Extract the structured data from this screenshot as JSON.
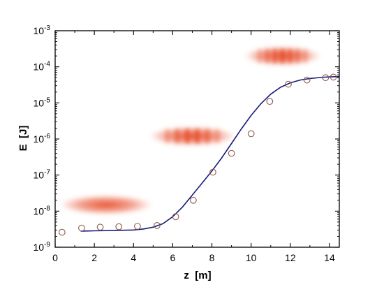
{
  "chart_data": {
    "type": "scatter",
    "title": "",
    "xlabel": "z  [m]",
    "ylabel": "E  [J]",
    "xlim": [
      0,
      14.5
    ],
    "ylim": [
      1e-09,
      0.001
    ],
    "yscale": "log",
    "grid": false,
    "x_ticks": [
      0,
      2,
      4,
      6,
      8,
      10,
      12,
      14
    ],
    "y_tick_exponents": [
      -9,
      -8,
      -7,
      -6,
      -5,
      -4,
      -3
    ],
    "series": [
      {
        "kind": "scatter",
        "marker": "open-circle",
        "color": "#8b5a4a",
        "x": [
          0.35,
          1.35,
          2.3,
          3.25,
          4.2,
          5.2,
          6.15,
          7.05,
          8.05,
          9.0,
          10.0,
          10.95,
          11.9,
          12.85,
          13.8,
          14.2
        ],
        "y": [
          2.6e-09,
          3.4e-09,
          3.6e-09,
          3.7e-09,
          3.8e-09,
          4e-09,
          7e-09,
          2e-08,
          1.2e-07,
          4e-07,
          1.4e-06,
          1.1e-05,
          3.3e-05,
          4.3e-05,
          5e-05,
          5.2e-05
        ]
      },
      {
        "kind": "line",
        "color": "#1a1a7a",
        "x": [
          1.3,
          2,
          3,
          4,
          4.5,
          5,
          5.5,
          6,
          6.5,
          7,
          7.5,
          8,
          8.5,
          9,
          9.5,
          10,
          10.5,
          11,
          11.5,
          12,
          12.5,
          13,
          13.5,
          14,
          14.5
        ],
        "y": [
          2.8e-09,
          2.85e-09,
          2.9e-09,
          3e-09,
          3.2e-09,
          3.6e-09,
          4.5e-09,
          7e-09,
          1.3e-08,
          2.8e-08,
          6e-08,
          1.3e-07,
          3e-07,
          7.5e-07,
          1.9e-06,
          4.5e-06,
          9.5e-06,
          1.75e-05,
          2.7e-05,
          3.6e-05,
          4.3e-05,
          4.75e-05,
          5.05e-05,
          5.25e-05,
          5.35e-05
        ]
      }
    ],
    "insets": [
      {
        "name": "bunch-low",
        "x_center": 2.6,
        "y_center": 1.5e-08,
        "x_span": 4.7,
        "modulation": 0
      },
      {
        "name": "bunch-mid",
        "x_center": 7.0,
        "y_center": 1.2e-06,
        "x_span": 4.4,
        "modulation": 6
      },
      {
        "name": "bunch-high",
        "x_center": 11.6,
        "y_center": 0.0002,
        "x_span": 3.9,
        "modulation": 7
      }
    ],
    "inset_color": "#e8502e"
  }
}
